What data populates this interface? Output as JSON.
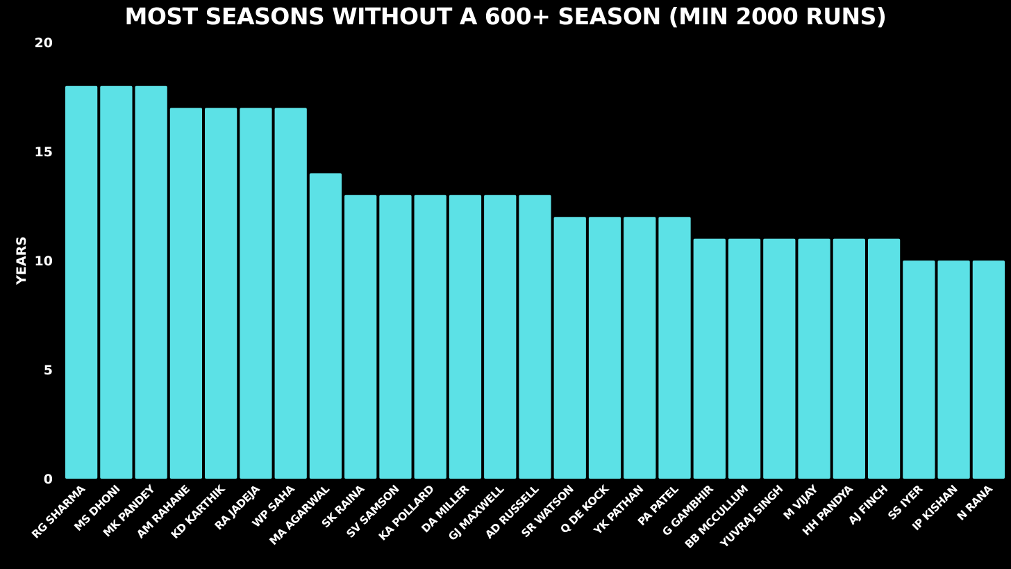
{
  "chart_data": {
    "type": "bar",
    "title": "MOST SEASONS WITHOUT A 600+ SEASON (MIN 2000 RUNS)",
    "xlabel": "",
    "ylabel": "YEARS",
    "ylim": [
      0,
      20
    ],
    "yticks": [
      "0",
      "5",
      "10",
      "15",
      "20"
    ],
    "grid": false,
    "categories": [
      "RG SHARMA",
      "MS DHONI",
      "MK PANDEY",
      "AM RAHANE",
      "KD KARTHIK",
      "RA JADEJA",
      "WP SAHA",
      "MA AGARWAL",
      "SK RAINA",
      "SV SAMSON",
      "KA POLLARD",
      "DA MILLER",
      "GJ MAXWELL",
      "AD RUSSELL",
      "SR WATSON",
      "Q DE KOCK",
      "YK PATHAN",
      "PA PATEL",
      "G GAMBHIR",
      "BB MCCULLUM",
      "YUVRAJ SINGH",
      "M VIJAY",
      "HH PANDYA",
      "AJ FINCH",
      "SS IYER",
      "IP KISHAN",
      "N RANA"
    ],
    "values": [
      18,
      18,
      18,
      17,
      17,
      17,
      17,
      14,
      13,
      13,
      13,
      13,
      13,
      13,
      12,
      12,
      12,
      12,
      11,
      11,
      11,
      11,
      11,
      11,
      10,
      10,
      10
    ],
    "colors": {
      "bar": "#5ce1e6",
      "background": "#000000",
      "text": "#ffffff"
    }
  }
}
